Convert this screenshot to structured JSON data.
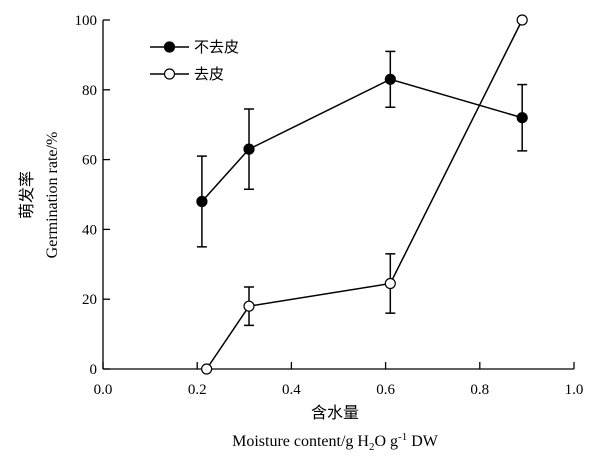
{
  "chart_data": {
    "type": "line",
    "title": "",
    "xlabel": "含水量",
    "xlabel_line2": {
      "prefix": "Moisture content/g H",
      "sub": "2",
      "mid": "O g",
      "sup": "-1",
      "suffix": " DW"
    },
    "ylabel_line1": "萌发率",
    "ylabel_line2": "Germination rate/%",
    "xlim": [
      0.0,
      1.0
    ],
    "ylim": [
      0,
      100
    ],
    "xticks": [
      "0.0",
      "0.2",
      "0.4",
      "0.6",
      "0.8",
      "1.0"
    ],
    "xtick_values": [
      0.0,
      0.2,
      0.4,
      0.6,
      0.8,
      1.0
    ],
    "yticks": [
      "0",
      "20",
      "40",
      "60",
      "80",
      "100"
    ],
    "ytick_values": [
      0,
      20,
      40,
      60,
      80,
      100
    ],
    "grid": false,
    "legend_position": "top-left",
    "series": [
      {
        "name": "不去皮",
        "marker": "filled-circle",
        "x": [
          0.21,
          0.31,
          0.61,
          0.89
        ],
        "y": [
          48,
          63,
          83,
          72
        ],
        "error": [
          13,
          11.5,
          8,
          9.5
        ]
      },
      {
        "name": "去皮",
        "marker": "open-circle",
        "x": [
          0.22,
          0.31,
          0.61,
          0.89
        ],
        "y": [
          0,
          18,
          24.5,
          100
        ],
        "error": [
          0,
          5.5,
          8.5,
          0
        ]
      }
    ]
  }
}
